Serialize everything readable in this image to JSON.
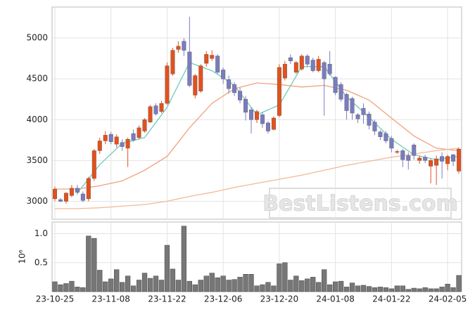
{
  "chart_data": [
    {
      "type": "candlestick",
      "categories": [
        "23-10-25",
        null,
        null,
        null,
        null,
        null,
        null,
        null,
        null,
        null,
        "23-11-08",
        null,
        null,
        null,
        null,
        null,
        null,
        null,
        null,
        null,
        "23-11-22",
        null,
        null,
        null,
        null,
        null,
        null,
        null,
        null,
        null,
        "23-12-06",
        null,
        null,
        null,
        null,
        null,
        null,
        null,
        null,
        null,
        "23-12-20",
        null,
        null,
        null,
        null,
        null,
        null,
        null,
        null,
        null,
        "24-01-08",
        null,
        null,
        null,
        null,
        null,
        null,
        null,
        null,
        null,
        "24-01-22",
        null,
        null,
        null,
        null,
        null,
        null,
        null,
        null,
        null,
        "24-02-05",
        null,
        null
      ],
      "open": [
        3030,
        3020,
        3000,
        3070,
        3160,
        3090,
        3030,
        3280,
        3620,
        3740,
        3820,
        3700,
        3720,
        3650,
        3830,
        3780,
        3860,
        3970,
        4170,
        4100,
        4200,
        4560,
        4860,
        4960,
        4830,
        4300,
        4350,
        4690,
        4750,
        4780,
        4610,
        4490,
        4430,
        4350,
        4250,
        4120,
        4000,
        4060,
        3960,
        3880,
        4050,
        4510,
        4760,
        4580,
        4620,
        4780,
        4730,
        4600,
        4700,
        4680,
        4520,
        4430,
        4310,
        4260,
        4060,
        4140,
        4070,
        3970,
        3850,
        3830,
        3770,
        3600,
        3620,
        3560,
        3690,
        3500,
        3540,
        3430,
        3440,
        3550,
        3460,
        3570,
        3370
      ],
      "high": [
        3180,
        3040,
        3110,
        3200,
        3200,
        3120,
        3300,
        3640,
        3780,
        3860,
        3850,
        3820,
        3760,
        3780,
        3880,
        3930,
        4020,
        4180,
        4200,
        4230,
        4700,
        4880,
        4960,
        5000,
        5260,
        4560,
        4680,
        4840,
        4850,
        4800,
        4640,
        4540,
        4460,
        4390,
        4290,
        4150,
        4120,
        4090,
        3980,
        4040,
        4680,
        4720,
        4800,
        4720,
        4800,
        4800,
        4760,
        4780,
        4720,
        4840,
        4530,
        4460,
        4330,
        4280,
        4080,
        4200,
        4100,
        4000,
        3870,
        3860,
        3800,
        3630,
        3640,
        3600,
        3710,
        3560,
        3570,
        3520,
        3560,
        3600,
        3570,
        3580,
        3660
      ],
      "low": [
        3000,
        2990,
        2970,
        3050,
        3080,
        2990,
        3000,
        3250,
        3580,
        3700,
        3700,
        3660,
        3620,
        3420,
        3730,
        3760,
        3840,
        3960,
        4050,
        4080,
        4180,
        4540,
        4820,
        4780,
        4400,
        4260,
        4330,
        4650,
        4720,
        4560,
        4440,
        4320,
        4290,
        4200,
        3990,
        3830,
        3960,
        3900,
        3830,
        3870,
        4030,
        4480,
        4680,
        4560,
        4600,
        4650,
        4580,
        4580,
        4050,
        4540,
        4300,
        4220,
        4000,
        4000,
        3960,
        3950,
        3880,
        3810,
        3750,
        3710,
        3600,
        3580,
        3420,
        3390,
        3510,
        3460,
        3470,
        3220,
        3200,
        3280,
        3380,
        3430,
        3340
      ],
      "close": [
        3150,
        3000,
        3100,
        3160,
        3110,
        3010,
        3280,
        3620,
        3740,
        3810,
        3730,
        3790,
        3670,
        3760,
        3750,
        3900,
        4000,
        4160,
        4070,
        4200,
        4660,
        4850,
        4900,
        4850,
        4420,
        4540,
        4660,
        4800,
        4790,
        4580,
        4500,
        4380,
        4330,
        4240,
        4090,
        4000,
        4100,
        3950,
        3860,
        4020,
        4640,
        4680,
        4720,
        4700,
        4780,
        4680,
        4600,
        4740,
        4500,
        4560,
        4330,
        4250,
        4110,
        4080,
        4010,
        4060,
        3930,
        3860,
        3790,
        3740,
        3650,
        3610,
        3510,
        3500,
        3560,
        3530,
        3500,
        3500,
        3520,
        3490,
        3550,
        3490,
        3640
      ],
      "up_color": "#e4501c",
      "down_color": "#7a7cc0",
      "series": [
        {
          "color": "#6fcabd",
          "x": [
            0,
            4,
            8,
            12,
            16,
            20,
            24,
            28,
            32,
            36,
            40,
            44,
            48,
            52,
            56,
            60,
            64,
            68,
            72
          ],
          "values": [
            null,
            3100,
            3450,
            3710,
            3780,
            4150,
            4700,
            4600,
            4420,
            4060,
            4180,
            4650,
            4650,
            4280,
            4030,
            3760,
            3570,
            3510,
            3550
          ]
        },
        {
          "color": "#f0a07a",
          "x": [
            0,
            4,
            8,
            12,
            16,
            20,
            24,
            28,
            32,
            36,
            40,
            44,
            48,
            52,
            56,
            60,
            64,
            68,
            72
          ],
          "values": [
            3150,
            3150,
            3190,
            3250,
            3380,
            3550,
            3900,
            4200,
            4380,
            4450,
            4430,
            4400,
            4420,
            4360,
            4240,
            4020,
            3800,
            3650,
            3620
          ]
        },
        {
          "color": "#f2b996",
          "x": [
            0,
            4,
            8,
            12,
            16,
            20,
            24,
            28,
            32,
            36,
            40,
            44,
            48,
            52,
            56,
            60,
            64,
            68,
            72
          ],
          "values": [
            2910,
            2910,
            2920,
            2940,
            2960,
            3000,
            3060,
            3110,
            3170,
            3220,
            3270,
            3320,
            3380,
            3440,
            3490,
            3540,
            3580,
            3620,
            3650
          ]
        }
      ],
      "ylim": [
        2780,
        5380
      ],
      "yticks": [
        3000,
        3500,
        4000,
        4500,
        5000
      ],
      "grid": true,
      "watermark": "BestListens.com"
    },
    {
      "type": "bar",
      "ylabel": "10⁶",
      "color": "#777777",
      "values": [
        0.17,
        0.12,
        0.14,
        0.18,
        0.08,
        0.07,
        0.96,
        0.92,
        0.37,
        0.17,
        0.22,
        0.38,
        0.16,
        0.27,
        0.1,
        0.2,
        0.32,
        0.23,
        0.27,
        0.2,
        0.8,
        0.39,
        0.2,
        1.13,
        0.18,
        0.12,
        0.2,
        0.27,
        0.32,
        0.24,
        0.27,
        0.2,
        0.21,
        0.25,
        0.3,
        0.3,
        0.1,
        0.12,
        0.16,
        0.1,
        0.48,
        0.5,
        0.2,
        0.27,
        0.19,
        0.22,
        0.25,
        0.16,
        0.38,
        0.12,
        0.17,
        0.18,
        0.08,
        0.15,
        0.1,
        0.11,
        0.09,
        0.07,
        0.08,
        0.07,
        0.05,
        0.1,
        0.1,
        0.04,
        0.06,
        0.05,
        0.07,
        0.05,
        0.05,
        0.08,
        0.13,
        0.07,
        0.28
      ],
      "ylim": [
        0,
        1.2
      ],
      "yticks": [
        0.5,
        {
          "value": 1,
          "label": "1.0"
        }
      ],
      "grid": true
    }
  ]
}
